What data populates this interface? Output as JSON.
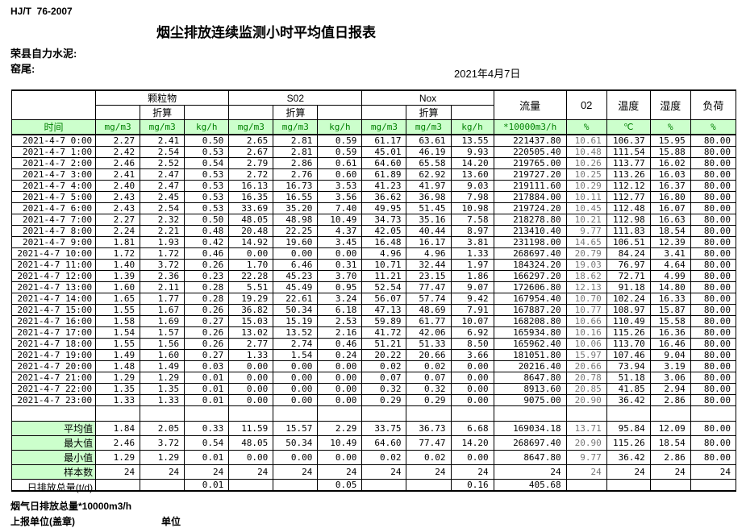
{
  "header": {
    "standard": "HJ/T  76-2007",
    "title": "烟尘排放连续监测小时平均值日报表",
    "company": "荣县自力水泥:",
    "location": "窑尾:",
    "date": "2021年4月7日"
  },
  "table": {
    "groups": [
      "颗粒物",
      "S02",
      "Nox"
    ],
    "converted_label": "折算",
    "single_headers": [
      "流量",
      "02",
      "温度",
      "湿度",
      "负荷"
    ],
    "units": [
      "时间",
      "mg/m3",
      "mg/m3",
      "kg/h",
      "mg/m3",
      "mg/m3",
      "kg/h",
      "mg/m3",
      "mg/m3",
      "kg/h",
      "*10000m3/h",
      "%",
      "℃",
      "%",
      "%"
    ],
    "rows": [
      [
        "2021-4-7 0:00",
        "2.27",
        "2.41",
        "0.50",
        "2.65",
        "2.81",
        "0.59",
        "61.17",
        "63.61",
        "13.55",
        "221437.80",
        "10.61",
        "106.37",
        "15.95",
        "80.00"
      ],
      [
        "2021-4-7 1:00",
        "2.42",
        "2.54",
        "0.53",
        "2.67",
        "2.81",
        "0.59",
        "45.01",
        "46.19",
        "9.93",
        "220505.40",
        "10.48",
        "111.54",
        "15.88",
        "80.00"
      ],
      [
        "2021-4-7 2:00",
        "2.46",
        "2.52",
        "0.54",
        "2.79",
        "2.86",
        "0.61",
        "64.60",
        "65.58",
        "14.20",
        "219765.00",
        "10.26",
        "113.77",
        "16.02",
        "80.00"
      ],
      [
        "2021-4-7 3:00",
        "2.41",
        "2.47",
        "0.53",
        "2.72",
        "2.76",
        "0.60",
        "61.89",
        "62.92",
        "13.60",
        "219727.20",
        "10.25",
        "113.26",
        "16.03",
        "80.00"
      ],
      [
        "2021-4-7 4:00",
        "2.40",
        "2.47",
        "0.53",
        "16.13",
        "16.73",
        "3.53",
        "41.23",
        "41.97",
        "9.03",
        "219111.60",
        "10.29",
        "112.12",
        "16.37",
        "80.00"
      ],
      [
        "2021-4-7 5:00",
        "2.43",
        "2.45",
        "0.53",
        "16.35",
        "16.55",
        "3.56",
        "36.62",
        "36.98",
        "7.98",
        "217884.00",
        "10.11",
        "112.77",
        "16.80",
        "80.00"
      ],
      [
        "2021-4-7 6:00",
        "2.43",
        "2.54",
        "0.53",
        "33.69",
        "35.20",
        "7.40",
        "49.95",
        "51.45",
        "10.98",
        "219724.20",
        "10.45",
        "112.48",
        "16.07",
        "80.00"
      ],
      [
        "2021-4-7 7:00",
        "2.27",
        "2.32",
        "0.50",
        "48.05",
        "48.98",
        "10.49",
        "34.73",
        "35.16",
        "7.58",
        "218278.80",
        "10.21",
        "112.98",
        "16.63",
        "80.00"
      ],
      [
        "2021-4-7 8:00",
        "2.24",
        "2.21",
        "0.48",
        "20.48",
        "22.25",
        "4.37",
        "42.05",
        "40.44",
        "8.97",
        "213410.40",
        "9.77",
        "111.83",
        "18.54",
        "80.00"
      ],
      [
        "2021-4-7 9:00",
        "1.81",
        "1.93",
        "0.42",
        "14.92",
        "19.60",
        "3.45",
        "16.48",
        "16.17",
        "3.81",
        "231198.00",
        "14.65",
        "106.51",
        "12.39",
        "80.00"
      ],
      [
        "2021-4-7 10:00",
        "1.72",
        "1.72",
        "0.46",
        "0.00",
        "0.00",
        "0.00",
        "4.96",
        "4.96",
        "1.33",
        "268697.40",
        "20.79",
        "84.24",
        "3.41",
        "80.00"
      ],
      [
        "2021-4-7 11:00",
        "1.40",
        "3.72",
        "0.26",
        "1.70",
        "6.46",
        "0.31",
        "10.71",
        "32.44",
        "1.97",
        "184324.20",
        "19.03",
        "76.97",
        "4.64",
        "80.00"
      ],
      [
        "2021-4-7 12:00",
        "1.39",
        "2.36",
        "0.23",
        "22.28",
        "45.23",
        "3.70",
        "11.21",
        "23.15",
        "1.86",
        "166297.20",
        "18.62",
        "72.71",
        "4.99",
        "80.00"
      ],
      [
        "2021-4-7 13:00",
        "1.60",
        "2.11",
        "0.28",
        "5.51",
        "45.49",
        "0.95",
        "52.54",
        "77.47",
        "9.07",
        "172606.80",
        "12.13",
        "91.18",
        "14.80",
        "80.00"
      ],
      [
        "2021-4-7 14:00",
        "1.65",
        "1.77",
        "0.28",
        "19.29",
        "22.61",
        "3.24",
        "56.07",
        "57.74",
        "9.42",
        "167954.40",
        "10.70",
        "102.24",
        "16.33",
        "80.00"
      ],
      [
        "2021-4-7 15:00",
        "1.55",
        "1.67",
        "0.26",
        "36.82",
        "50.34",
        "6.18",
        "47.13",
        "48.69",
        "7.91",
        "167887.20",
        "10.77",
        "108.97",
        "15.87",
        "80.00"
      ],
      [
        "2021-4-7 16:00",
        "1.58",
        "1.69",
        "0.27",
        "15.03",
        "15.19",
        "2.53",
        "59.89",
        "61.77",
        "10.07",
        "168208.80",
        "10.66",
        "110.49",
        "15.58",
        "80.00"
      ],
      [
        "2021-4-7 17:00",
        "1.54",
        "1.57",
        "0.26",
        "13.02",
        "13.52",
        "2.16",
        "41.72",
        "42.06",
        "6.92",
        "165934.80",
        "10.16",
        "115.26",
        "16.36",
        "80.00"
      ],
      [
        "2021-4-7 18:00",
        "1.55",
        "1.56",
        "0.26",
        "2.77",
        "2.74",
        "0.46",
        "51.21",
        "51.33",
        "8.50",
        "165962.40",
        "10.06",
        "113.70",
        "16.46",
        "80.00"
      ],
      [
        "2021-4-7 19:00",
        "1.49",
        "1.60",
        "0.27",
        "1.33",
        "1.54",
        "0.24",
        "20.22",
        "20.66",
        "3.66",
        "181051.80",
        "15.97",
        "107.46",
        "9.04",
        "80.00"
      ],
      [
        "2021-4-7 20:00",
        "1.48",
        "1.49",
        "0.03",
        "0.00",
        "0.00",
        "0.00",
        "0.02",
        "0.02",
        "0.00",
        "20216.40",
        "20.66",
        "73.94",
        "3.19",
        "80.00"
      ],
      [
        "2021-4-7 21:00",
        "1.29",
        "1.29",
        "0.01",
        "0.00",
        "0.00",
        "0.00",
        "0.07",
        "0.07",
        "0.00",
        "8647.80",
        "20.78",
        "51.18",
        "3.06",
        "80.00"
      ],
      [
        "2021-4-7 22:00",
        "1.35",
        "1.35",
        "0.01",
        "0.00",
        "0.00",
        "0.00",
        "0.32",
        "0.32",
        "0.00",
        "8913.60",
        "20.85",
        "41.85",
        "2.94",
        "80.00"
      ],
      [
        "2021-4-7 23:00",
        "1.33",
        "1.33",
        "0.01",
        "0.00",
        "0.00",
        "0.00",
        "0.29",
        "0.29",
        "0.00",
        "9075.00",
        "20.90",
        "36.42",
        "2.86",
        "80.00"
      ]
    ],
    "summary_rows": [
      {
        "id": "avg",
        "label": "平均值",
        "highlight": true,
        "values": [
          "1.84",
          "2.05",
          "0.33",
          "11.59",
          "15.57",
          "2.29",
          "33.75",
          "36.73",
          "6.68",
          "169034.18",
          "13.71",
          "95.84",
          "12.09",
          "80.00"
        ]
      },
      {
        "id": "max",
        "label": "最大值",
        "highlight": true,
        "values": [
          "2.46",
          "3.72",
          "0.54",
          "48.05",
          "50.34",
          "10.49",
          "64.60",
          "77.47",
          "14.20",
          "268697.40",
          "20.90",
          "115.26",
          "18.54",
          "80.00"
        ]
      },
      {
        "id": "min",
        "label": "最小值",
        "highlight": true,
        "values": [
          "1.29",
          "1.29",
          "0.01",
          "0.00",
          "0.00",
          "0.00",
          "0.02",
          "0.02",
          "0.00",
          "8647.80",
          "9.77",
          "36.42",
          "2.86",
          "80.00"
        ]
      },
      {
        "id": "count",
        "label": "样本数",
        "highlight": true,
        "values": [
          "24",
          "24",
          "24",
          "24",
          "24",
          "24",
          "24",
          "24",
          "24",
          "24",
          "24",
          "24",
          "24",
          "24"
        ]
      },
      {
        "id": "total",
        "label": "日排放总量(t/d)",
        "highlight": false,
        "values": [
          "",
          "",
          "0.01",
          "",
          "",
          "0.05",
          "",
          "",
          "0.16",
          "405.68",
          "",
          "",
          "",
          ""
        ]
      }
    ]
  },
  "footer": {
    "total_flue": "烟气日排放总量*10000m3/h",
    "report_unit": "上报单位(盖章)",
    "unit": "单位"
  },
  "colors": {
    "highlight_bg": "#ccffcc",
    "unit_text": "#008000",
    "o2_text": "#777777"
  }
}
